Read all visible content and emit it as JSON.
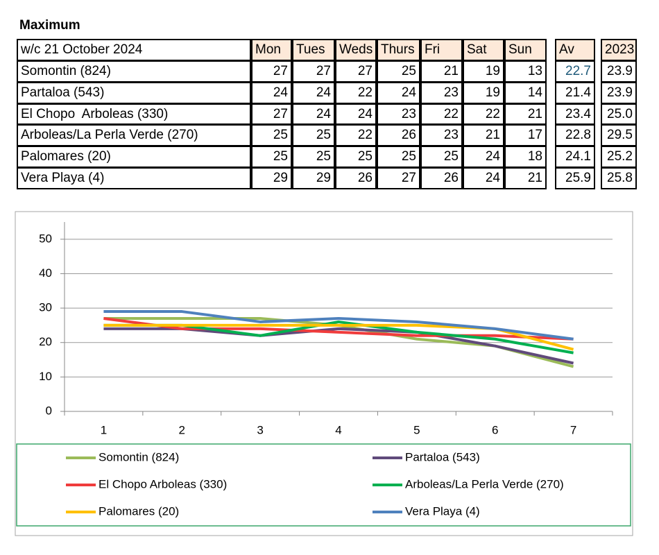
{
  "title": "Maximum",
  "table": {
    "header": [
      "w/c 21 October 2024",
      "Mon",
      "Tues",
      "Weds",
      "Thurs",
      "Fri",
      "Sat",
      "Sun",
      "Av",
      "2023"
    ],
    "rows": [
      [
        "Somontin (824)",
        "27",
        "27",
        "27",
        "25",
        "21",
        "19",
        "13",
        "22.7",
        "23.9"
      ],
      [
        "Partaloa (543)",
        "24",
        "24",
        "22",
        "24",
        "23",
        "19",
        "14",
        "21.4",
        "23.9"
      ],
      [
        "El Chopo  Arboleas (330)",
        "27",
        "24",
        "24",
        "23",
        "22",
        "22",
        "21",
        "23.4",
        "25.0"
      ],
      [
        "Arboleas/La Perla Verde (270)",
        "25",
        "25",
        "22",
        "26",
        "23",
        "21",
        "17",
        "22.8",
        "29.5"
      ],
      [
        "Palomares (20)",
        "25",
        "25",
        "25",
        "25",
        "25",
        "24",
        "18",
        "24.1",
        "25.2"
      ],
      [
        "Vera Playa (4)",
        "29",
        "29",
        "26",
        "27",
        "26",
        "24",
        "21",
        "25.9",
        "25.8"
      ]
    ]
  },
  "chart_data": {
    "type": "line",
    "categories": [
      "1",
      "2",
      "3",
      "4",
      "5",
      "6",
      "7"
    ],
    "series": [
      {
        "name": "Somontin (824)",
        "color": "#9bbb59",
        "values": [
          27,
          27,
          27,
          25,
          21,
          19,
          13
        ]
      },
      {
        "name": "Partaloa (543)",
        "color": "#604a7b",
        "values": [
          24,
          24,
          22,
          24,
          23,
          19,
          14
        ]
      },
      {
        "name": "El Chopo  Arboleas (330)",
        "color": "#f03c3c",
        "values": [
          27,
          24,
          24,
          23,
          22,
          22,
          21
        ]
      },
      {
        "name": "Arboleas/La Perla Verde (270)",
        "color": "#00b050",
        "values": [
          25,
          25,
          22,
          26,
          23,
          21,
          17
        ]
      },
      {
        "name": "Palomares (20)",
        "color": "#ffc000",
        "values": [
          25,
          25,
          25,
          25,
          25,
          24,
          18
        ]
      },
      {
        "name": "Vera Playa (4)",
        "color": "#4f81bd",
        "values": [
          29,
          29,
          26,
          27,
          26,
          24,
          21
        ]
      }
    ],
    "ylim": [
      0,
      55
    ],
    "yticks": [
      0,
      10,
      20,
      30,
      40,
      50
    ],
    "grid": true,
    "legend": "bottom"
  }
}
